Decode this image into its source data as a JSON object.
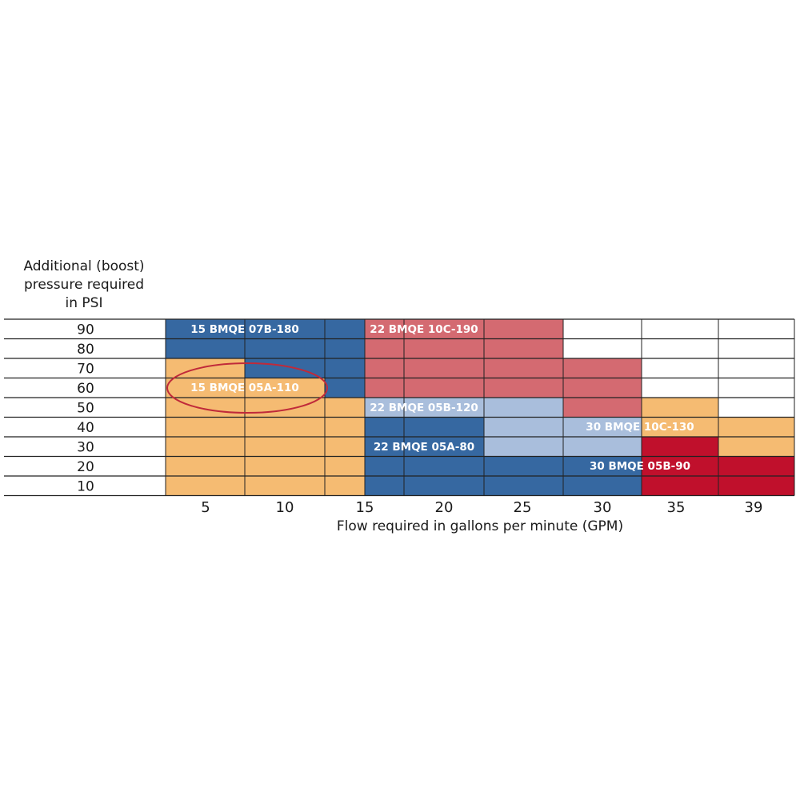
{
  "chart_data": {
    "type": "table",
    "ylabel_lines": [
      "Additional (boost)",
      "pressure required",
      "in PSI"
    ],
    "xlabel": "Flow required in gallons per minute (GPM)",
    "pressure_rows": [
      "90",
      "80",
      "70",
      "60",
      "50",
      "40",
      "30",
      "20",
      "10"
    ],
    "flow_columns": [
      "5",
      "10",
      "15",
      "20",
      "25",
      "30",
      "35",
      "39"
    ],
    "colors": {
      "orange": "#F5BB72",
      "dark_blue": "#3668A1",
      "light_blue": "#A9BEDC",
      "pink": "#D46A71",
      "dark_red": "#C0102C",
      "grid": "#222222",
      "circle": "#C02A3A"
    },
    "models": [
      "15 BMQE 07B-180",
      "15 BMQE 05A-110",
      "22 BMQE 10C-190",
      "22 BMQE 05B-120",
      "22 BMQE 05A-80",
      "30 BMQE 10C-130",
      "30 BMQE 05B-90"
    ],
    "highlighted_model": "15 BMQE 05A-110",
    "cell_grid": [
      [
        "dark_blue",
        "dark_blue",
        "dark_blue",
        "pink",
        "pink",
        "white",
        "white",
        "white"
      ],
      [
        "dark_blue",
        "dark_blue",
        "dark_blue",
        "pink",
        "pink",
        "white",
        "white",
        "white"
      ],
      [
        "orange",
        "dark_blue",
        "dark_blue",
        "pink",
        "pink",
        "pink",
        "white",
        "white"
      ],
      [
        "orange",
        "orange",
        "dark_blue",
        "pink",
        "pink",
        "pink",
        "white",
        "white"
      ],
      [
        "orange",
        "orange",
        "orange",
        "light_blue",
        "light_blue",
        "pink",
        "orange",
        "white"
      ],
      [
        "orange",
        "orange",
        "orange",
        "dark_blue",
        "light_blue",
        "light_blue",
        "orange",
        "orange"
      ],
      [
        "orange",
        "orange",
        "orange",
        "dark_blue",
        "light_blue",
        "light_blue",
        "dark_red",
        "orange"
      ],
      [
        "orange",
        "orange",
        "orange",
        "dark_blue",
        "dark_blue",
        "dark_blue",
        "dark_red",
        "dark_red"
      ],
      [
        "orange",
        "orange",
        "orange",
        "dark_blue",
        "dark_blue",
        "dark_blue",
        "dark_red",
        "dark_red"
      ]
    ],
    "cell_grid_legend": "rows from 90 PSI down to 10 PSI; columns: 8 flow bands"
  }
}
